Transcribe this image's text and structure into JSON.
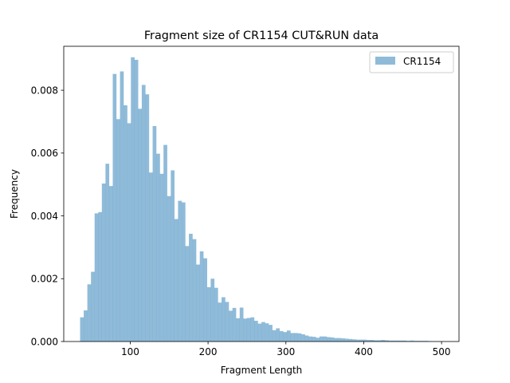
{
  "chart_data": {
    "type": "bar",
    "title": "Fragment size of CR1154 CUT&RUN data",
    "xlabel": "Fragment Length",
    "ylabel": "Frequency",
    "xlim": [
      14.6,
      522.4
    ],
    "ylim": [
      0,
      0.0094
    ],
    "x_ticks": [
      100,
      200,
      300,
      400,
      500
    ],
    "x_tick_labels": [
      "100",
      "200",
      "300",
      "400",
      "500"
    ],
    "y_ticks": [
      0,
      0.002,
      0.004,
      0.006,
      0.008
    ],
    "y_tick_labels": [
      "0.000",
      "0.002",
      "0.004",
      "0.006",
      "0.008"
    ],
    "legend": {
      "position": "top-right",
      "entries": [
        "CR1154"
      ]
    },
    "grid": false,
    "series": [
      {
        "name": "CR1154",
        "color": "#1f77b4",
        "alpha": 0.5,
        "bin_start": 35.6,
        "bin_width": 4.66,
        "values": [
          0.00077,
          0.00099,
          0.00182,
          0.00222,
          0.00408,
          0.00412,
          0.00503,
          0.00566,
          0.00495,
          0.00852,
          0.00708,
          0.0086,
          0.00752,
          0.00695,
          0.00905,
          0.00897,
          0.00741,
          0.00817,
          0.00787,
          0.00538,
          0.00686,
          0.00598,
          0.00534,
          0.00626,
          0.00463,
          0.00545,
          0.0039,
          0.00448,
          0.00443,
          0.00304,
          0.00343,
          0.00326,
          0.00245,
          0.00287,
          0.00265,
          0.00173,
          0.002,
          0.00171,
          0.00124,
          0.00141,
          0.00126,
          0.00098,
          0.00107,
          0.00074,
          0.00108,
          0.00073,
          0.00075,
          0.00077,
          0.00066,
          0.00057,
          0.00062,
          0.00058,
          0.00053,
          0.00036,
          0.00042,
          0.00033,
          0.0003,
          0.00035,
          0.00027,
          0.00027,
          0.00026,
          0.00023,
          0.00019,
          0.00016,
          0.00015,
          0.00012,
          0.00016,
          0.00016,
          0.00014,
          0.00013,
          0.00011,
          0.00011,
          0.0001,
          9e-05,
          8e-05,
          7e-05,
          6e-05,
          6e-05,
          6e-05,
          5e-05,
          5e-05,
          4e-05,
          4e-05,
          5e-05,
          4e-05,
          3e-05,
          3e-05,
          3e-05,
          3e-05,
          3e-05,
          2e-05,
          3e-05,
          2e-05,
          2e-05,
          2e-05,
          2e-05,
          1e-05
        ]
      }
    ]
  }
}
